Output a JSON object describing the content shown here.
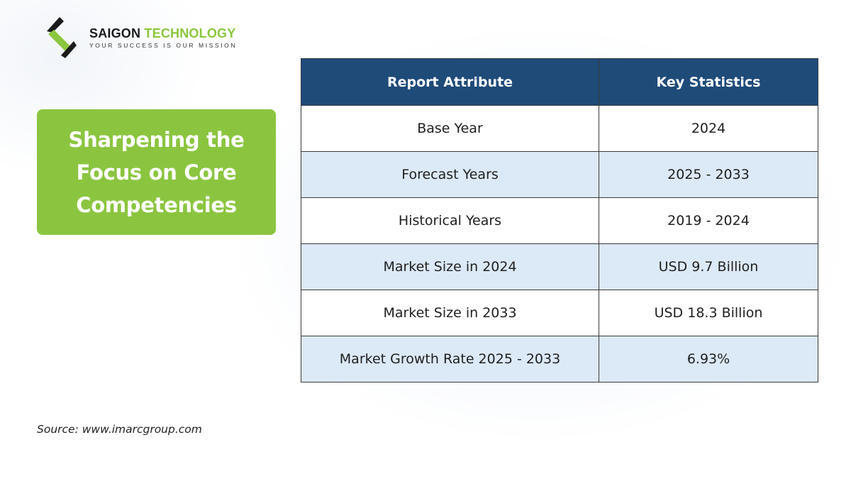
{
  "brand": {
    "name_part1": "SAIGON",
    "name_part2": "TECHNOLOGY",
    "tagline": "YOUR SUCCESS IS OUR MISSION",
    "accent_color": "#8cc63f"
  },
  "headline": {
    "text": "Sharpening the Focus on Core Competencies",
    "background_color": "#8bc540"
  },
  "table": {
    "header_color": "#1f4b79",
    "alt_row_color": "#dce9f6",
    "headers": [
      "Report Attribute",
      "Key Statistics"
    ],
    "rows": [
      [
        "Base Year",
        "2024"
      ],
      [
        "Forecast Years",
        "2025 - 2033"
      ],
      [
        "Historical Years",
        "2019 - 2024"
      ],
      [
        "Market Size in 2024",
        "USD 9.7 Billion"
      ],
      [
        "Market Size in 2033",
        "USD 18.3 Billion"
      ],
      [
        "Market Growth Rate 2025 - 2033",
        "6.93%"
      ]
    ]
  },
  "source": "Source: www.imarcgroup.com"
}
